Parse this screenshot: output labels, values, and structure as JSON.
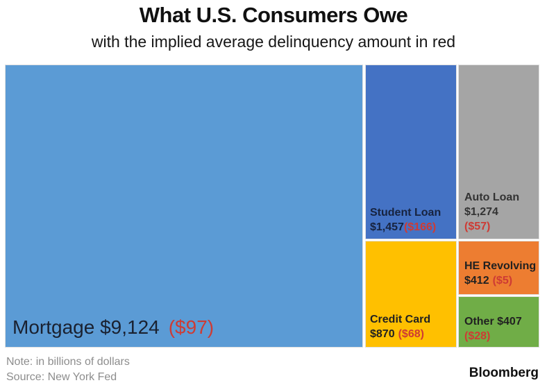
{
  "chart_data": {
    "type": "treemap",
    "title": "What U.S. Consumers Owe",
    "subtitle": "with the implied average delinquency amount in red",
    "note": "Note: in billions of dollars",
    "source": "Source: New York Fed",
    "brand": "Bloomberg",
    "unit": "billions of dollars",
    "delinquency_color": "#ce3b34",
    "tiles": [
      {
        "name": "Mortgage",
        "value": 9124,
        "delinquency": 97,
        "color": "#5B9BD5",
        "lines": [
          {
            "black": "Mortgage $9,124",
            "red": "($97)"
          }
        ]
      },
      {
        "name": "Student Loan",
        "value": 1457,
        "delinquency": 166,
        "color": "#4472C4",
        "lines": [
          {
            "black": "Student Loan"
          },
          {
            "black": "$1,457",
            "red": "($166)"
          }
        ]
      },
      {
        "name": "Auto Loan",
        "value": 1274,
        "delinquency": 57,
        "color": "#A5A5A5",
        "lines": [
          {
            "black": "Auto Loan"
          },
          {
            "black": "$1,274"
          },
          {
            "red": "($57)"
          }
        ]
      },
      {
        "name": "Credit Card",
        "value": 870,
        "delinquency": 68,
        "color": "#FFC000",
        "lines": [
          {
            "black": "Credit Card"
          },
          {
            "black": "$870",
            "red": "($68)"
          }
        ]
      },
      {
        "name": "HE Revolving",
        "value": 412,
        "delinquency": 5,
        "color": "#ED7D31",
        "lines": [
          {
            "black": "HE Revolving"
          },
          {
            "black": "$412",
            "red": "($5)"
          }
        ]
      },
      {
        "name": "Other",
        "value": 407,
        "delinquency": 28,
        "color": "#70AD47",
        "lines": [
          {
            "black": "Other $407"
          },
          {
            "red": "($28)"
          }
        ]
      }
    ]
  }
}
